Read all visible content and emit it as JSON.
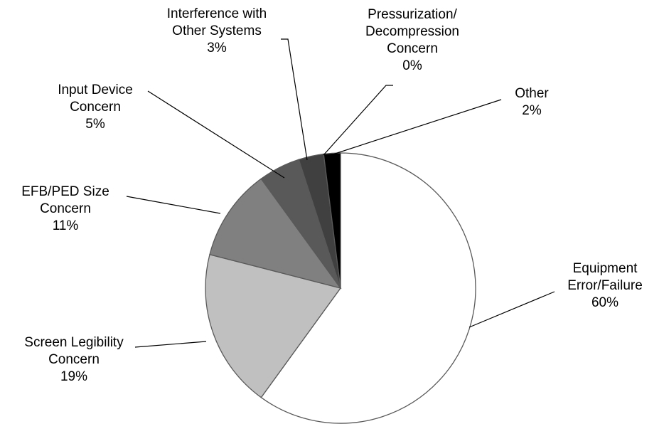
{
  "chart_data": {
    "type": "pie",
    "title": "",
    "slices": [
      {
        "name": "Equipment Error/Failure",
        "lines": [
          "Equipment",
          "Error/Failure"
        ],
        "value": 60,
        "pct_label": "60%",
        "color": "#ffffff"
      },
      {
        "name": "Screen Legibility Concern",
        "lines": [
          "Screen Legibility",
          "Concern"
        ],
        "value": 19,
        "pct_label": "19%",
        "color": "#c0c0c0"
      },
      {
        "name": "EFB/PED Size Concern",
        "lines": [
          "EFB/PED Size",
          "Concern"
        ],
        "value": 11,
        "pct_label": "11%",
        "color": "#808080"
      },
      {
        "name": "Input Device Concern",
        "lines": [
          "Input Device",
          "Concern"
        ],
        "value": 5,
        "pct_label": "5%",
        "color": "#595959"
      },
      {
        "name": "Interference with Other Systems",
        "lines": [
          "Interference with",
          "Other Systems"
        ],
        "value": 3,
        "pct_label": "3%",
        "color": "#404040"
      },
      {
        "name": "Pressurization/Decompression Concern",
        "lines": [
          "Pressurization/",
          "Decompression",
          "Concern"
        ],
        "value": 0,
        "pct_label": "0%",
        "color": "#262626"
      },
      {
        "name": "Other",
        "lines": [
          "Other"
        ],
        "value": 2,
        "pct_label": "2%",
        "color": "#000000"
      }
    ],
    "start": "12 o'clock",
    "direction": "clockwise",
    "legend": "none",
    "slice_border_color": "#595959"
  }
}
